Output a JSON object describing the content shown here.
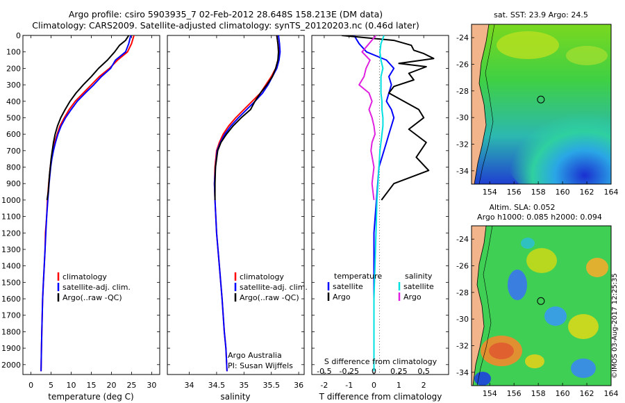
{
  "header": {
    "title_line1": "Argo profile: csiro 5903935_7 02-Feb-2012 28.648S 158.213E (DM data)",
    "title_line2": "Climatology: CARS2009. Satellite-adjusted climatology: synTS_20120203.nc (0.46d later)"
  },
  "side_label": "©IMOS 03-Aug-2017 12:25:35",
  "chart_data": [
    {
      "type": "line",
      "id": "temperature",
      "xlabel": "temperature (deg C)",
      "ylabel": "",
      "xlim": [
        -2,
        32
      ],
      "ylim": [
        2060,
        0
      ],
      "xticks": [
        0,
        5,
        10,
        15,
        20,
        25,
        30
      ],
      "yticks": [
        0,
        100,
        200,
        300,
        400,
        500,
        600,
        700,
        800,
        900,
        1000,
        1100,
        1200,
        1300,
        1400,
        1500,
        1600,
        1700,
        1800,
        1900,
        2000
      ],
      "legend": [
        "climatology",
        "satellite-adj. clim.",
        "Argo(..raw -QC)"
      ],
      "series": [
        {
          "name": "climatology",
          "color": "#ff0000",
          "x": [
            25.6,
            25.0,
            24.0,
            21.5,
            19.5,
            17.0,
            15.0,
            13.0,
            11.0,
            9.5,
            8.3,
            7.2,
            6.5,
            5.9,
            5.5,
            5.1,
            4.8,
            4.4,
            4.1,
            3.9,
            3.6,
            3.5,
            3.3,
            3.1,
            2.9,
            2.8,
            2.7,
            2.6,
            2.5
          ],
          "y": [
            0,
            50,
            100,
            150,
            200,
            250,
            300,
            350,
            400,
            450,
            500,
            550,
            600,
            650,
            700,
            750,
            800,
            900,
            1000,
            1100,
            1200,
            1300,
            1400,
            1500,
            1600,
            1700,
            1800,
            1900,
            2040
          ]
        },
        {
          "name": "satellite-adj. clim.",
          "color": "#0000ff",
          "x": [
            24.8,
            24.3,
            23.5,
            21.0,
            19.8,
            17.5,
            15.6,
            13.5,
            11.5,
            10.0,
            8.6,
            7.5,
            6.7,
            6.1,
            5.6,
            5.2,
            4.9,
            4.5,
            4.2,
            3.9,
            3.7,
            3.5,
            3.3,
            3.1,
            2.9,
            2.8,
            2.7,
            2.6,
            2.5
          ],
          "y": [
            0,
            50,
            100,
            150,
            200,
            250,
            300,
            350,
            400,
            450,
            500,
            550,
            600,
            650,
            700,
            750,
            800,
            900,
            1000,
            1100,
            1200,
            1300,
            1400,
            1500,
            1600,
            1700,
            1800,
            1900,
            2040
          ]
        },
        {
          "name": "Argo(..raw -QC)",
          "color": "#000000",
          "x": [
            24.3,
            23.5,
            22.0,
            20.8,
            19.0,
            16.8,
            15.0,
            13.0,
            11.2,
            9.7,
            8.5,
            7.4,
            6.6,
            6.0,
            5.6,
            5.3,
            5.0,
            4.6,
            4.3,
            4.0
          ],
          "y": [
            0,
            30,
            60,
            100,
            150,
            200,
            250,
            300,
            350,
            400,
            450,
            500,
            550,
            600,
            650,
            700,
            750,
            850,
            950,
            1000
          ]
        }
      ]
    },
    {
      "type": "line",
      "id": "salinity",
      "xlabel": "salinity",
      "ylabel": "",
      "xlim": [
        33.6,
        36.1
      ],
      "ylim": [
        2060,
        0
      ],
      "xticks": [
        34,
        34.5,
        35,
        35.5,
        36
      ],
      "legend": [
        "climatology",
        "satellite-adj. clim.",
        "Argo(..raw -QC)"
      ],
      "annotations": [
        "Argo Australia",
        "PI: Susan Wijffels"
      ],
      "series": [
        {
          "name": "climatology",
          "color": "#ff0000",
          "x": [
            35.6,
            35.62,
            35.64,
            35.62,
            35.58,
            35.5,
            35.4,
            35.3,
            35.15,
            35.0,
            34.85,
            34.72,
            34.62,
            34.55,
            34.5,
            34.47,
            34.46,
            34.47,
            34.5,
            34.55,
            34.6,
            34.64,
            34.67,
            34.69
          ],
          "y": [
            0,
            50,
            100,
            150,
            200,
            250,
            300,
            350,
            400,
            450,
            500,
            550,
            600,
            650,
            700,
            800,
            900,
            1000,
            1200,
            1400,
            1600,
            1800,
            1900,
            2040
          ]
        },
        {
          "name": "satellite-adj. clim.",
          "color": "#0000ff",
          "x": [
            35.63,
            35.65,
            35.66,
            35.64,
            35.6,
            35.52,
            35.44,
            35.34,
            35.2,
            35.05,
            34.9,
            34.76,
            34.65,
            34.57,
            34.51,
            34.48,
            34.46,
            34.47,
            34.5,
            34.55,
            34.6,
            34.64,
            34.67,
            34.69
          ],
          "y": [
            0,
            50,
            100,
            150,
            200,
            250,
            300,
            350,
            400,
            450,
            500,
            550,
            600,
            650,
            700,
            800,
            900,
            1000,
            1200,
            1400,
            1600,
            1800,
            1900,
            2040
          ]
        },
        {
          "name": "Argo(..raw -QC)",
          "color": "#000000",
          "x": [
            35.6,
            35.62,
            35.63,
            35.62,
            35.58,
            35.52,
            35.42,
            35.3,
            35.2,
            35.12,
            34.95,
            34.8,
            34.68,
            34.58,
            34.52,
            34.48,
            34.47,
            34.47
          ],
          "y": [
            0,
            50,
            100,
            150,
            200,
            250,
            300,
            350,
            400,
            450,
            500,
            550,
            600,
            650,
            700,
            800,
            900,
            1000
          ]
        }
      ]
    },
    {
      "type": "line",
      "id": "difference",
      "xlabel": "T difference from climatology",
      "xlabel_top": "S difference from climatology",
      "xlim": [
        -2.5,
        3.0
      ],
      "ylim": [
        2060,
        0
      ],
      "xticks": [
        -2,
        -1,
        0,
        1,
        2
      ],
      "xticks_s": [
        -0.5,
        -0.25,
        0,
        0.25,
        0.5
      ],
      "legend_temperature_title": "temperature",
      "legend_salinity_title": "salinity",
      "legend_temperature": [
        "satellite",
        "Argo"
      ],
      "legend_salinity": [
        "satellite",
        "Argo"
      ],
      "series": [
        {
          "name": "temperature satellite",
          "color": "#0000ff",
          "x": [
            -0.8,
            -0.6,
            -0.3,
            0.5,
            0.8,
            0.6,
            0.7,
            0.6,
            0.5,
            0.7,
            0.8,
            0.7,
            0.6,
            0.5,
            0.4,
            0.3,
            0.2,
            0.15,
            0.1,
            0.05,
            0.0,
            0.0,
            0.0,
            0.0,
            0.0,
            0.0
          ],
          "y": [
            0,
            50,
            100,
            150,
            200,
            250,
            300,
            350,
            400,
            450,
            500,
            550,
            600,
            650,
            700,
            750,
            800,
            900,
            1000,
            1100,
            1200,
            1400,
            1600,
            1800,
            1900,
            2040
          ]
        },
        {
          "name": "temperature Argo",
          "color": "#000000",
          "x": [
            -1.3,
            0.8,
            1.5,
            1.6,
            2.0,
            2.4,
            1.0,
            2.1,
            1.4,
            1.6,
            0.8,
            0.6,
            1.2,
            1.8,
            2.0,
            1.4,
            2.1,
            1.7,
            2.2,
            0.8,
            0.3
          ],
          "y": [
            0,
            30,
            60,
            90,
            110,
            140,
            170,
            190,
            230,
            270,
            310,
            350,
            400,
            450,
            500,
            570,
            650,
            740,
            820,
            900,
            1000
          ]
        },
        {
          "name": "salinity satellite",
          "color": "#00e0e0",
          "x": [
            0.1,
            0.07,
            0.06,
            0.07,
            0.09,
            0.07,
            0.07,
            0.07,
            0.08,
            0.08,
            0.09,
            0.09,
            0.08,
            0.07,
            0.06,
            0.05,
            0.04,
            0.03,
            0.02,
            0.01,
            0.0,
            0.0,
            0.0,
            0.0
          ],
          "y": [
            0,
            50,
            100,
            150,
            200,
            250,
            300,
            350,
            400,
            450,
            500,
            550,
            600,
            650,
            700,
            800,
            900,
            1000,
            1200,
            1400,
            1600,
            1800,
            1900,
            2040
          ]
        },
        {
          "name": "salinity Argo",
          "color": "#e020e0",
          "x": [
            0.02,
            -0.05,
            -0.12,
            -0.04,
            -0.08,
            -0.1,
            -0.15,
            -0.05,
            -0.02,
            -0.05,
            -0.02,
            0.0,
            0.01,
            -0.02,
            -0.03,
            0.0,
            -0.01,
            -0.02,
            -0.01,
            0.0
          ],
          "y": [
            0,
            50,
            100,
            150,
            200,
            250,
            300,
            350,
            400,
            450,
            500,
            550,
            600,
            650,
            700,
            800,
            850,
            900,
            950,
            1000
          ]
        }
      ]
    },
    {
      "type": "heatmap",
      "id": "sst_map",
      "title": "sat. SST: 23.9 Argo: 24.5",
      "xlim": [
        152.5,
        164
      ],
      "ylim": [
        -35,
        -23
      ],
      "xticks": [
        154,
        156,
        158,
        160,
        162,
        164
      ],
      "yticks": [
        -24,
        -26,
        -28,
        -30,
        -32,
        -34
      ],
      "marker": {
        "lon": 158.213,
        "lat": -28.648
      }
    },
    {
      "type": "heatmap",
      "id": "sla_map",
      "title_line1": "Altim. SLA: 0.052",
      "title_line2": "Argo h1000: 0.085 h2000: 0.094",
      "xlim": [
        152.5,
        164
      ],
      "ylim": [
        -35,
        -23
      ],
      "xticks": [
        154,
        156,
        158,
        160,
        162,
        164
      ],
      "yticks": [
        -24,
        -26,
        -28,
        -30,
        -32,
        -34
      ],
      "marker": {
        "lon": 158.213,
        "lat": -28.648
      }
    }
  ]
}
